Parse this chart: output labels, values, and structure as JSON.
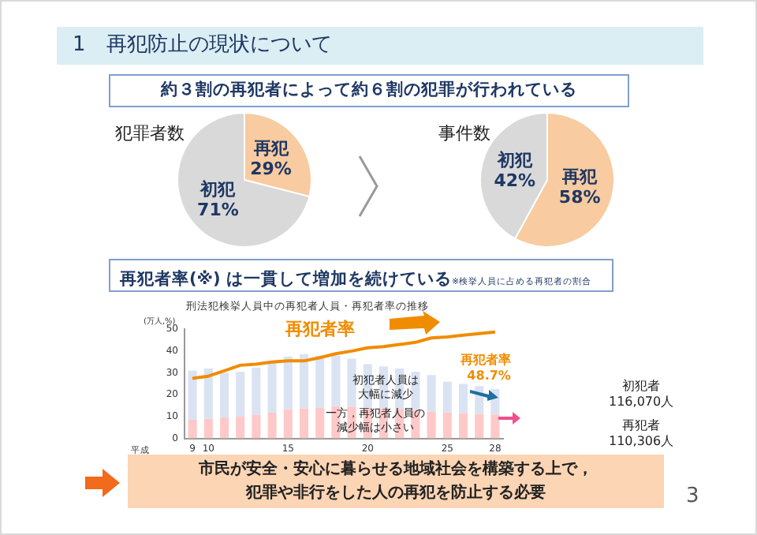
{
  "chart_data": [
    {
      "type": "pie",
      "title": "犯罪者数",
      "categories": [
        "再犯",
        "初犯"
      ],
      "values": [
        29,
        71
      ],
      "colors": [
        "#f8cba0",
        "#d9d9d9"
      ],
      "value_labels": [
        "29%",
        "71%"
      ],
      "legend": false,
      "annotations": [
        "1　再犯防止の現状について",
        "約３割の再犯者によって約６割の犯罪が行われている"
      ]
    },
    {
      "type": "pie",
      "title": "事件数",
      "categories": [
        "再犯",
        "初犯"
      ],
      "values": [
        58,
        42
      ],
      "colors": [
        "#f8cba0",
        "#d9d9d9"
      ],
      "value_labels": [
        "58%",
        "42%"
      ],
      "legend": false
    },
    {
      "type": "bar",
      "title": "再犯者率(※) は一貫して増加を続けている",
      "subtitle": "刑法犯検挙人員中の再犯者人員・再犯者率の推移",
      "xlabel": "平成",
      "ylabel": "(万人,%)",
      "stacked": true,
      "grid": false,
      "legend": false,
      "categories": [
        "9",
        "10",
        null,
        null,
        null,
        null,
        "15",
        null,
        null,
        null,
        null,
        "20",
        null,
        null,
        null,
        null,
        "25",
        null,
        null,
        "28"
      ],
      "ylim": [
        0,
        50
      ],
      "yticks": [
        0,
        10,
        20,
        30,
        40,
        50
      ],
      "series": [
        {
          "type": "bar",
          "color": "#ffc9c9",
          "values": [
            8.5,
            9.0,
            9.5,
            10.0,
            10.8,
            11.8,
            13.3,
            13.8,
            14.0,
            14.8,
            14.5,
            14.0,
            13.8,
            13.5,
            13.0,
            12.3,
            12.0,
            11.6,
            11.2,
            11.0
          ]
        },
        {
          "type": "bar",
          "color": "#dae3f3",
          "values": [
            22.5,
            23.0,
            20.5,
            20.5,
            21.7,
            22.7,
            24.2,
            24.7,
            24.0,
            23.2,
            22.0,
            20.0,
            19.2,
            18.5,
            17.5,
            16.7,
            14.0,
            13.4,
            12.8,
            11.6
          ]
        },
        {
          "type": "line",
          "color": "#f08c00",
          "marker": "none",
          "line_style": "solid",
          "values": [
            27.5,
            28.5,
            31,
            33.5,
            34,
            35,
            35.5,
            35.5,
            37,
            38.8,
            40,
            41.5,
            42,
            43,
            44,
            46,
            46.5,
            47.3,
            48,
            48.7
          ]
        }
      ],
      "annotations": [
        "※検挙人員に占める再犯者の割合",
        "再犯者率",
        "初犯者人員は大幅に減少",
        "一方，再犯者人員の減少幅は小さい",
        "初犯者\n116,070人",
        "再犯者\n110,306人",
        "市民が安全・安心に暮らせる地域社会を構築する上で，犯罪や非行をした人の再犯を防止する必要",
        "3",
        {
          "text": "再犯者率\n48.7%",
          "x": "28",
          "y": 48.7
        }
      ]
    }
  ]
}
